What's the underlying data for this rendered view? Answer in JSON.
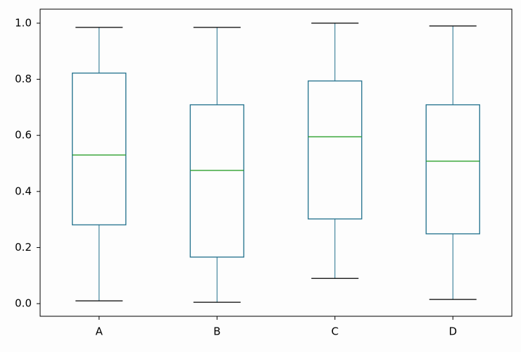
{
  "chart_data": {
    "type": "box",
    "categories": [
      "A",
      "B",
      "C",
      "D"
    ],
    "boxes": [
      {
        "whislo": 0.01,
        "q1": 0.281,
        "med": 0.53,
        "q3": 0.822,
        "whishi": 0.985
      },
      {
        "whislo": 0.005,
        "q1": 0.166,
        "med": 0.475,
        "q3": 0.709,
        "whishi": 0.985
      },
      {
        "whislo": 0.09,
        "q1": 0.302,
        "med": 0.595,
        "q3": 0.794,
        "whishi": 1.0
      },
      {
        "whislo": 0.015,
        "q1": 0.249,
        "med": 0.508,
        "q3": 0.709,
        "whishi": 0.99
      }
    ],
    "box_color": "#1f6f8b",
    "median_color": "#2ca02c",
    "cap_color": "#000000",
    "ylim": [
      -0.045,
      1.05
    ],
    "yticks": [
      {
        "value": 0,
        "label": "0.0"
      },
      0.2,
      0.4,
      0.6,
      0.8,
      {
        "value": 1,
        "label": "1.0"
      }
    ],
    "grid": false
  }
}
